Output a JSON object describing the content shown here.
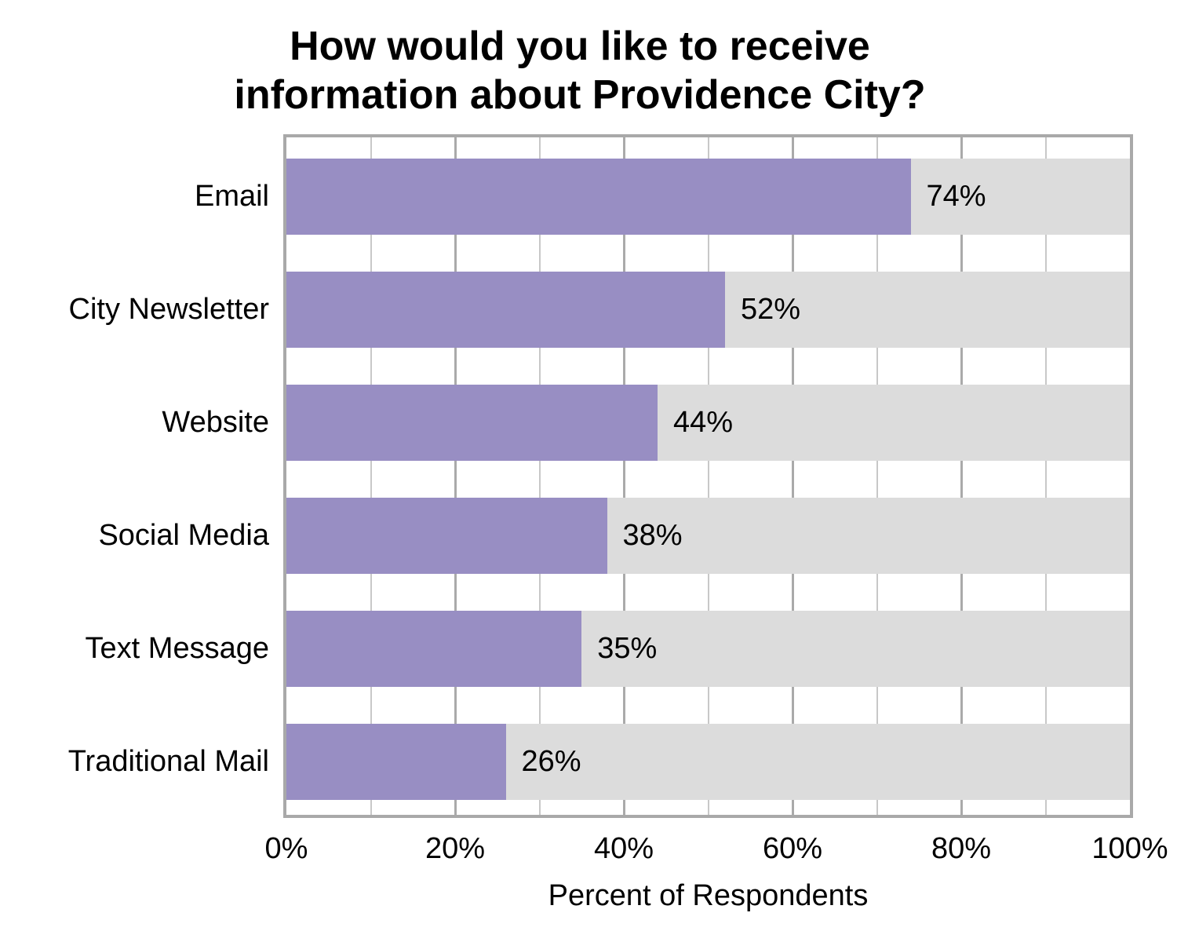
{
  "chart_data": {
    "type": "bar",
    "orientation": "horizontal",
    "title": "How would you like to receive information about Providence City?",
    "title_lines": [
      "How would you like to receive",
      "information about Providence City?"
    ],
    "xlabel": "Percent of Respondents",
    "ylabel": "",
    "categories": [
      "Email",
      "City Newsletter",
      "Website",
      "Social Media",
      "Text Message",
      "Traditional Mail"
    ],
    "values": [
      74,
      52,
      44,
      38,
      35,
      26
    ],
    "value_labels": [
      "74%",
      "52%",
      "44%",
      "38%",
      "35%",
      "26%"
    ],
    "xlim": [
      0,
      100
    ],
    "x_ticks": [
      "0%",
      "20%",
      "40%",
      "60%",
      "80%",
      "100%"
    ],
    "grid": true,
    "legend": "none",
    "colors": {
      "bar": "#988ec3",
      "bar_background": "#dcdcdc",
      "major_grid": "#aaaaaa",
      "minor_grid": "#c8c8c8"
    }
  }
}
